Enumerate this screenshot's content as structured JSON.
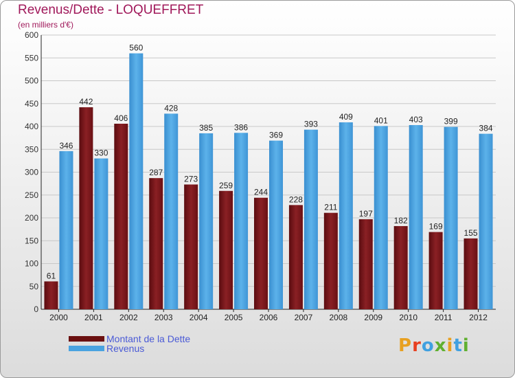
{
  "page": {
    "title": "Revenus/Dette - LOQUEFFRET",
    "subtitle": "(en milliers d'€)",
    "logo_text": "Proxiti"
  },
  "colors": {
    "title": "#a0185a",
    "debt_bar": "#7a1418",
    "revenue_bar": "#4aa3e0",
    "legend_text": "#4a5ad6",
    "logo_letters": [
      "#e8a020",
      "#e84020",
      "#40a0e0",
      "#60b030",
      "#e8a020",
      "#40a0e0",
      "#60b030"
    ]
  },
  "legend": [
    {
      "label": "Montant de la Dette",
      "color": "#6b1010"
    },
    {
      "label": "Revenus",
      "color": "#4aa3e0"
    }
  ],
  "chart_data": {
    "type": "bar",
    "title": "Revenus/Dette - LOQUEFFRET",
    "subtitle": "(en milliers d'€)",
    "categories": [
      "2000",
      "2001",
      "2002",
      "2003",
      "2004",
      "2005",
      "2006",
      "2007",
      "2008",
      "2009",
      "2010",
      "2011",
      "2012"
    ],
    "series": [
      {
        "name": "Montant de la Dette",
        "values": [
          61,
          442,
          406,
          287,
          273,
          259,
          244,
          228,
          211,
          197,
          182,
          169,
          155
        ]
      },
      {
        "name": "Revenus",
        "values": [
          346,
          330,
          560,
          428,
          385,
          386,
          369,
          393,
          409,
          401,
          403,
          399,
          384
        ]
      }
    ],
    "ylim": [
      0,
      600
    ],
    "yticks": [
      0,
      50,
      100,
      150,
      200,
      250,
      300,
      350,
      400,
      450,
      500,
      550,
      600
    ],
    "grid": true,
    "legend_position": "bottom-left"
  }
}
